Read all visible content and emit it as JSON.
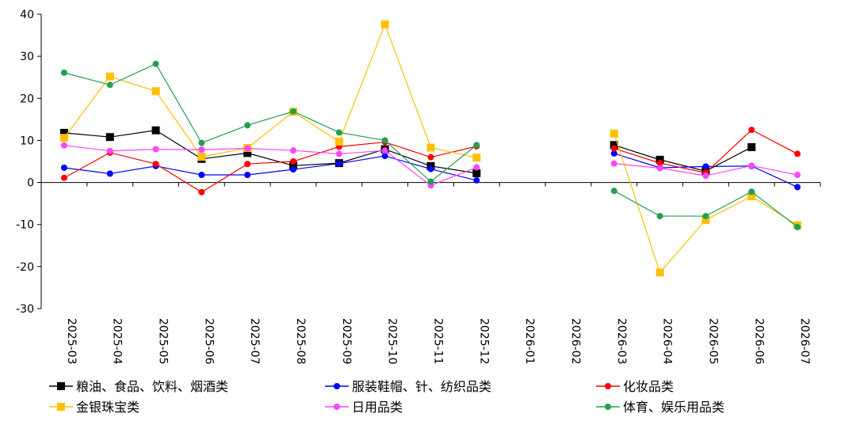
{
  "chart_data": {
    "type": "line",
    "title": "",
    "xlabel": "",
    "ylabel": "",
    "ylim": [
      -30,
      40
    ],
    "yticks": [
      -30,
      -20,
      -10,
      0,
      10,
      20,
      30,
      40
    ],
    "grid": false,
    "legend_position": "bottom",
    "categories": [
      "2025-03",
      "2025-04",
      "2025-05",
      "2025-06",
      "2025-07",
      "2025-08",
      "2025-09",
      "2025-10",
      "2025-11",
      "2025-12",
      "2026-01",
      "2026-02",
      "2026-03",
      "2026-04",
      "2026-05",
      "2026-06",
      "2026-07"
    ],
    "series": [
      {
        "name": "粮油、食品、饮料、烟酒类",
        "color": "#000000",
        "marker": "square",
        "values": [
          11.8,
          10.8,
          12.4,
          5.6,
          7.0,
          4.0,
          4.6,
          7.9,
          3.9,
          2.2,
          null,
          null,
          8.9,
          5.4,
          2.7,
          8.4,
          null
        ]
      },
      {
        "name": "服装鞋帽、针、纺织品类",
        "color": "#0000ff",
        "marker": "circle",
        "values": [
          3.5,
          2.1,
          3.9,
          1.8,
          1.8,
          3.1,
          4.5,
          6.3,
          3.2,
          0.5,
          null,
          null,
          6.9,
          3.5,
          3.8,
          3.9,
          -1.1
        ]
      },
      {
        "name": "化妆品类",
        "color": "#ff0000",
        "marker": "circle",
        "values": [
          1.1,
          7.1,
          4.4,
          -2.3,
          4.4,
          5.0,
          8.5,
          9.6,
          6.0,
          8.6,
          null,
          null,
          8.1,
          4.6,
          2.3,
          12.5,
          6.8
        ]
      },
      {
        "name": "金银珠宝类",
        "color": "#ffc000",
        "marker": "square",
        "values": [
          10.6,
          25.2,
          21.7,
          6.1,
          8.2,
          16.8,
          9.7,
          37.6,
          8.3,
          5.9,
          null,
          null,
          11.6,
          -21.4,
          -8.9,
          -3.3,
          -10.2
        ]
      },
      {
        "name": "日用品类",
        "color": "#ff44ff",
        "marker": "circle",
        "values": [
          8.8,
          7.5,
          7.9,
          7.8,
          8.1,
          7.6,
          6.8,
          7.6,
          -0.7,
          3.6,
          null,
          null,
          4.5,
          3.4,
          1.6,
          4.0,
          1.8
        ]
      },
      {
        "name": "体育、娱乐用品类",
        "color": "#22a050",
        "marker": "circle",
        "values": [
          26.1,
          23.2,
          28.2,
          9.4,
          13.6,
          16.9,
          11.9,
          10.0,
          0.2,
          8.9,
          null,
          null,
          -2.0,
          -8.0,
          -8.0,
          -2.2,
          -10.6
        ]
      }
    ]
  }
}
